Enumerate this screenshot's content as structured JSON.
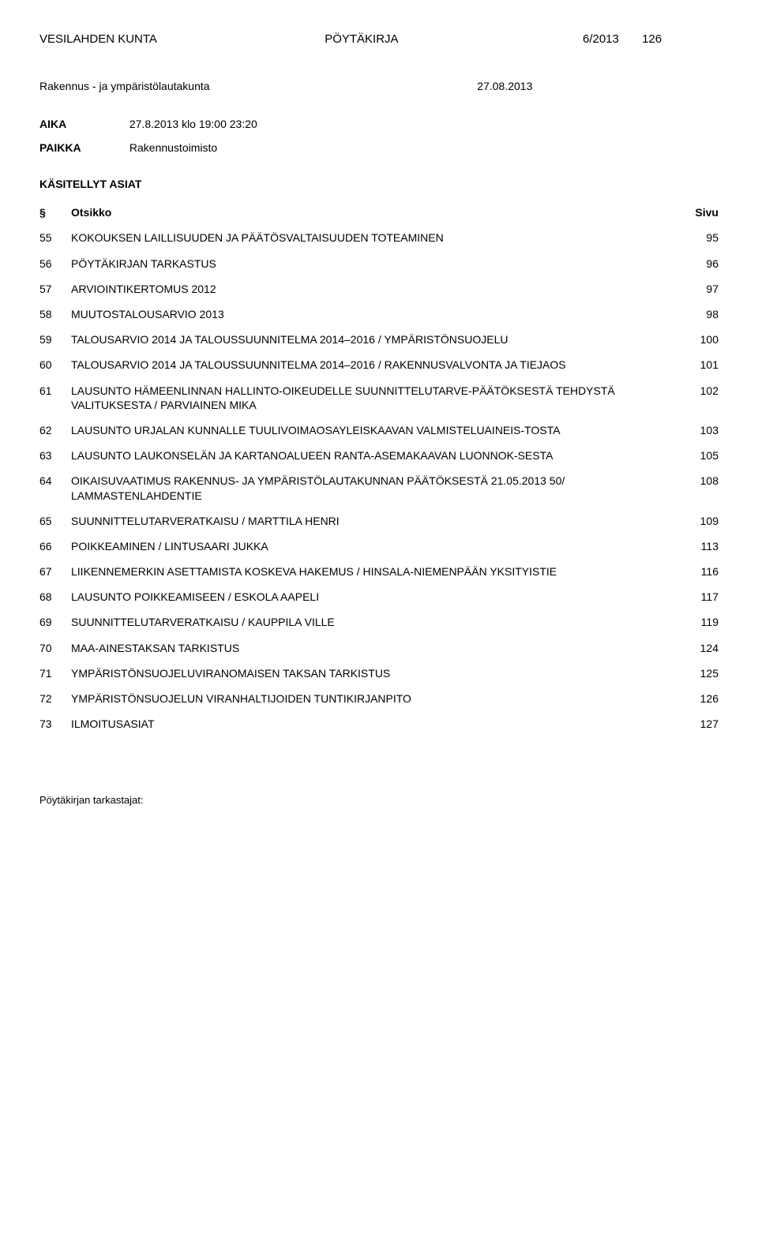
{
  "header": {
    "org": "VESILAHDEN KUNTA",
    "docType": "PÖYTÄKIRJA",
    "docNum": "6/2013",
    "pageCount": "126"
  },
  "committee": {
    "name": "Rakennus - ja ympäristölautakunta",
    "date": "27.08.2013"
  },
  "aika": {
    "label": "AIKA",
    "value": "27.8.2013 klo 19:00 23:20"
  },
  "paikka": {
    "label": "PAIKKA",
    "value": "Rakennustoimisto"
  },
  "kasitellyt": "KÄSITELLYT ASIAT",
  "tocHeader": {
    "s": "§",
    "title": "Otsikko",
    "page": "Sivu"
  },
  "toc": [
    {
      "num": "55",
      "title": "KOKOUKSEN LAILLISUUDEN JA PÄÄTÖSVALTAISUUDEN TOTEAMINEN",
      "page": "95"
    },
    {
      "num": "56",
      "title": "PÖYTÄKIRJAN TARKASTUS",
      "page": "96"
    },
    {
      "num": "57",
      "title": "ARVIOINTIKERTOMUS 2012",
      "page": "97"
    },
    {
      "num": "58",
      "title": "MUUTOSTALOUSARVIO 2013",
      "page": "98"
    },
    {
      "num": "59",
      "title": "TALOUSARVIO 2014 JA TALOUSSUUNNITELMA 2014–2016 / YMPÄRISTÖNSUOJELU",
      "page": "100"
    },
    {
      "num": "60",
      "title": "TALOUSARVIO 2014 JA TALOUSSUUNNITELMA 2014–2016 / RAKENNUSVALVONTA JA TIEJAOS",
      "page": "101"
    },
    {
      "num": "61",
      "title": "LAUSUNTO HÄMEENLINNAN HALLINTO-OIKEUDELLE SUUNNITTELUTARVE-PÄÄTÖKSESTÄ TEHDYSTÄ VALITUKSESTA / PARVIAINEN MIKA",
      "page": "102"
    },
    {
      "num": "62",
      "title": "LAUSUNTO URJALAN KUNNALLE TUULIVOIMAOSAYLEISKAAVAN VALMISTELUAINEIS-TOSTA",
      "page": "103"
    },
    {
      "num": "63",
      "title": "LAUSUNTO LAUKONSELÄN JA KARTANOALUEEN RANTA-ASEMAKAAVAN LUONNOK-SESTA",
      "page": "105"
    },
    {
      "num": "64",
      "title": "OIKAISUVAATIMUS RAKENNUS- JA YMPÄRISTÖLAUTAKUNNAN PÄÄTÖKSESTÄ 21.05.2013 50/ LAMMASTENLAHDENTIE",
      "page": "108"
    },
    {
      "num": "65",
      "title": "SUUNNITTELUTARVERATKAISU / MARTTILA HENRI",
      "page": "109"
    },
    {
      "num": "66",
      "title": "POIKKEAMINEN / LINTUSAARI JUKKA",
      "page": "113"
    },
    {
      "num": "67",
      "title": "LIIKENNEMERKIN ASETTAMISTA KOSKEVA HAKEMUS / HINSALA-NIEMENPÄÄN YKSITYISTIE",
      "page": "116"
    },
    {
      "num": "68",
      "title": "LAUSUNTO POIKKEAMISEEN / ESKOLA AAPELI",
      "page": "117"
    },
    {
      "num": "69",
      "title": "SUUNNITTELUTARVERATKAISU / KAUPPILA VILLE",
      "page": "119"
    },
    {
      "num": "70",
      "title": "MAA-AINESTAKSAN TARKISTUS",
      "page": "124"
    },
    {
      "num": "71",
      "title": "YMPÄRISTÖNSUOJELUVIRANOMAISEN TAKSAN TARKISTUS",
      "page": "125"
    },
    {
      "num": "72",
      "title": "YMPÄRISTÖNSUOJELUN VIRANHALTIJOIDEN TUNTIKIRJANPITO",
      "page": "126"
    },
    {
      "num": "73",
      "title": "ILMOITUSASIAT",
      "page": "127"
    }
  ],
  "footer": "Pöytäkirjan tarkastajat:"
}
